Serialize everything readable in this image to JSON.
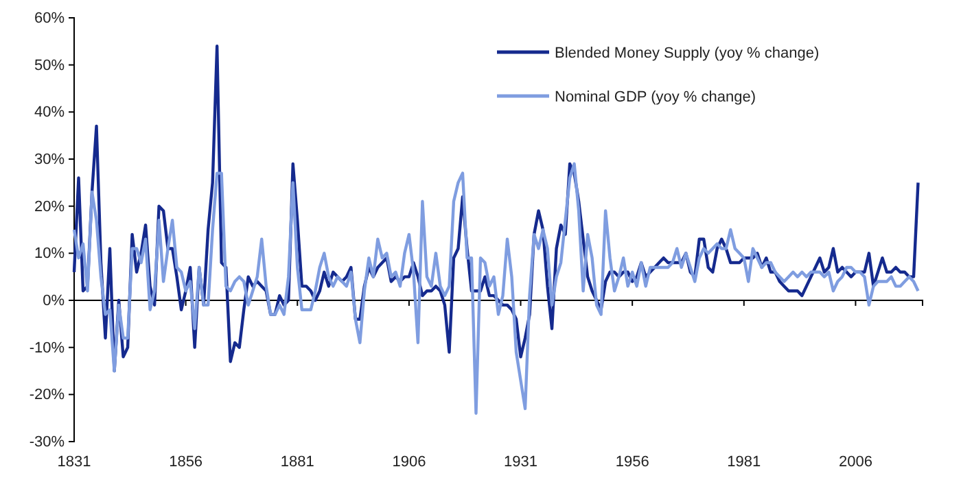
{
  "chart_data": {
    "type": "line",
    "x": [
      1831,
      1832,
      1833,
      1834,
      1835,
      1836,
      1837,
      1838,
      1839,
      1840,
      1841,
      1842,
      1843,
      1844,
      1845,
      1846,
      1847,
      1848,
      1849,
      1850,
      1851,
      1852,
      1853,
      1854,
      1855,
      1856,
      1857,
      1858,
      1859,
      1860,
      1861,
      1862,
      1863,
      1864,
      1865,
      1866,
      1867,
      1868,
      1869,
      1870,
      1871,
      1872,
      1873,
      1874,
      1875,
      1876,
      1877,
      1878,
      1879,
      1880,
      1881,
      1882,
      1883,
      1884,
      1885,
      1886,
      1887,
      1888,
      1889,
      1890,
      1891,
      1892,
      1893,
      1894,
      1895,
      1896,
      1897,
      1898,
      1899,
      1900,
      1901,
      1902,
      1903,
      1904,
      1905,
      1906,
      1907,
      1908,
      1909,
      1910,
      1911,
      1912,
      1913,
      1914,
      1915,
      1916,
      1917,
      1918,
      1919,
      1920,
      1921,
      1922,
      1923,
      1924,
      1925,
      1926,
      1927,
      1928,
      1929,
      1930,
      1931,
      1932,
      1933,
      1934,
      1935,
      1936,
      1937,
      1938,
      1939,
      1940,
      1941,
      1942,
      1943,
      1944,
      1945,
      1946,
      1947,
      1948,
      1949,
      1950,
      1951,
      1952,
      1953,
      1954,
      1955,
      1956,
      1957,
      1958,
      1959,
      1960,
      1961,
      1962,
      1963,
      1964,
      1965,
      1966,
      1967,
      1968,
      1969,
      1970,
      1971,
      1972,
      1973,
      1974,
      1975,
      1976,
      1977,
      1978,
      1979,
      1980,
      1981,
      1982,
      1983,
      1984,
      1985,
      1986,
      1987,
      1988,
      1989,
      1990,
      1991,
      1992,
      1993,
      1994,
      1995,
      1996,
      1997,
      1998,
      1999,
      2000,
      2001,
      2002,
      2003,
      2004,
      2005,
      2006,
      2007,
      2008,
      2009,
      2010,
      2011,
      2012,
      2013,
      2014,
      2015,
      2016,
      2017,
      2018,
      2019,
      2020
    ],
    "series": [
      {
        "name": "Blended Money Supply (yoy % change)",
        "color": "#152a8e",
        "values": [
          6,
          26,
          2,
          3,
          23,
          37,
          8,
          -8,
          11,
          -15,
          0,
          -12,
          -10,
          14,
          6,
          10,
          16,
          3,
          -1,
          20,
          19,
          11,
          11,
          5,
          -2,
          2,
          7,
          -10,
          7,
          -1,
          15,
          25,
          54,
          8,
          7,
          -13,
          -9,
          -10,
          -2,
          5,
          3,
          4,
          3,
          2,
          -3,
          -3,
          1,
          -1,
          0,
          29,
          17,
          3,
          3,
          2,
          0,
          2,
          6,
          3,
          6,
          5,
          4,
          5,
          7,
          -4,
          -4,
          3,
          7,
          5,
          7,
          8,
          9,
          4,
          5,
          4,
          5,
          5,
          8,
          5,
          1,
          2,
          2,
          3,
          2,
          -1,
          -11,
          9,
          11,
          22,
          11,
          2,
          2,
          2,
          5,
          1,
          1,
          0,
          -1,
          -1,
          -2,
          -4,
          -12,
          -8,
          -3,
          14,
          19,
          15,
          3,
          -6,
          11,
          16,
          14,
          29,
          27,
          21,
          13,
          5,
          2,
          0,
          -2,
          4,
          6,
          6,
          5,
          6,
          6,
          4,
          5,
          8,
          5,
          6,
          7,
          8,
          9,
          8,
          8,
          8,
          8,
          10,
          6,
          5,
          13,
          13,
          7,
          6,
          11,
          13,
          11,
          8,
          8,
          8,
          9,
          9,
          9,
          10,
          7,
          9,
          6,
          6,
          4,
          3,
          2,
          2,
          2,
          1,
          3,
          5,
          7,
          9,
          6,
          7,
          11,
          6,
          7,
          6,
          5,
          6,
          6,
          6,
          10,
          3,
          6,
          9,
          6,
          6,
          7,
          6,
          6,
          5,
          5,
          25
        ]
      },
      {
        "name": "Nominal GDP (yoy % change)",
        "color": "#7f9de0",
        "values": [
          15,
          9,
          12,
          2,
          23,
          17,
          5,
          -3,
          -2,
          -15,
          -1,
          -8,
          -8,
          11,
          11,
          8,
          13,
          -2,
          2,
          17,
          4,
          11,
          17,
          7,
          6,
          2,
          4,
          -6,
          7,
          -1,
          -1,
          15,
          27,
          27,
          3,
          2,
          4,
          5,
          4,
          -1,
          2,
          5,
          13,
          3,
          -3,
          -3,
          -1,
          -3,
          5,
          25,
          7,
          -2,
          -2,
          -2,
          2,
          7,
          10,
          5,
          3,
          5,
          4,
          3,
          6,
          -4,
          -9,
          2,
          9,
          5,
          13,
          9,
          10,
          5,
          6,
          3,
          10,
          14,
          6,
          -9,
          21,
          5,
          3,
          10,
          3,
          1,
          3,
          21,
          25,
          27,
          9,
          9,
          -24,
          9,
          8,
          3,
          5,
          -3,
          1,
          13,
          5,
          -11,
          -17,
          -23,
          1,
          14,
          11,
          15,
          11,
          -1,
          5,
          8,
          17,
          26,
          29,
          19,
          2,
          14,
          9,
          -1,
          -3,
          19,
          9,
          2,
          5,
          9,
          3,
          6,
          3,
          8,
          3,
          7,
          7,
          7,
          7,
          7,
          8,
          11,
          7,
          10,
          7,
          4,
          9,
          11,
          10,
          11,
          12,
          11,
          11,
          15,
          11,
          10,
          9,
          4,
          11,
          9,
          7,
          8,
          8,
          6,
          5,
          4,
          5,
          6,
          5,
          6,
          5,
          6,
          6,
          6,
          5,
          6,
          2,
          4,
          5,
          7,
          7,
          6,
          6,
          5,
          -1,
          3,
          4,
          4,
          4,
          5,
          3,
          3,
          4,
          5,
          4,
          2
        ]
      }
    ],
    "xlim": [
      1831,
      2021
    ],
    "xticks": [
      1831,
      1856,
      1881,
      1906,
      1931,
      1956,
      1981,
      2006
    ],
    "ylim": [
      -30,
      60
    ],
    "yticks": [
      {
        "value": -30,
        "label": "-30%"
      },
      {
        "value": -20,
        "label": "-20%"
      },
      {
        "value": -10,
        "label": "-10%"
      },
      {
        "value": 0,
        "label": "0%"
      },
      {
        "value": 10,
        "label": "10%"
      },
      {
        "value": 20,
        "label": "20%"
      },
      {
        "value": 30,
        "label": "30%"
      },
      {
        "value": 40,
        "label": "40%"
      },
      {
        "value": 50,
        "label": "50%"
      },
      {
        "value": 60,
        "label": "60%"
      }
    ],
    "grid": false,
    "legend": "top right"
  }
}
